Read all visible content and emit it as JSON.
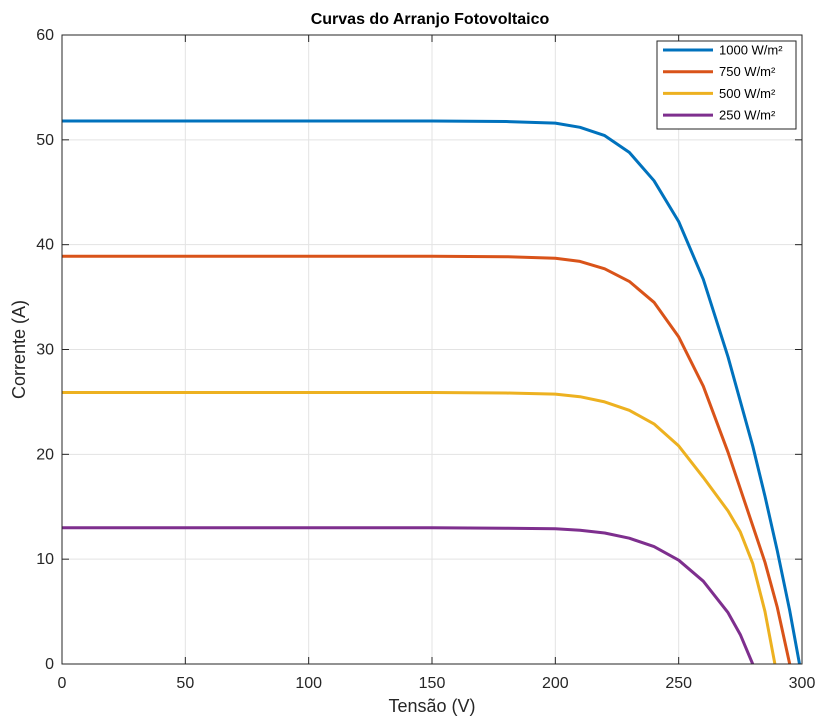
{
  "chart_data": {
    "type": "line",
    "title": "Curvas do Arranjo Fotovoltaico",
    "xlabel": "Tensão (V)",
    "ylabel": "Corrente (A)",
    "xlim": [
      0,
      300
    ],
    "ylim": [
      0,
      60
    ],
    "xticks": [
      0,
      50,
      100,
      150,
      200,
      250,
      300
    ],
    "yticks": [
      0,
      10,
      20,
      30,
      40,
      50,
      60
    ],
    "grid": true,
    "legend_position": "top-right",
    "series": [
      {
        "name": "1000 W/m²",
        "color": "#0072BD",
        "points": [
          [
            0,
            51.8
          ],
          [
            100,
            51.8
          ],
          [
            150,
            51.8
          ],
          [
            180,
            51.75
          ],
          [
            200,
            51.6
          ],
          [
            210,
            51.2
          ],
          [
            220,
            50.4
          ],
          [
            230,
            48.8
          ],
          [
            240,
            46.1
          ],
          [
            250,
            42.2
          ],
          [
            260,
            36.7
          ],
          [
            270,
            29.3
          ],
          [
            280,
            20.8
          ],
          [
            285,
            16.0
          ],
          [
            290,
            10.8
          ],
          [
            295,
            5.1
          ],
          [
            299,
            0
          ]
        ]
      },
      {
        "name": "750 W/m²",
        "color": "#D95319",
        "points": [
          [
            0,
            38.9
          ],
          [
            100,
            38.9
          ],
          [
            150,
            38.9
          ],
          [
            180,
            38.85
          ],
          [
            200,
            38.7
          ],
          [
            210,
            38.4
          ],
          [
            220,
            37.7
          ],
          [
            230,
            36.5
          ],
          [
            240,
            34.5
          ],
          [
            250,
            31.2
          ],
          [
            260,
            26.5
          ],
          [
            270,
            20.2
          ],
          [
            280,
            13.2
          ],
          [
            285,
            9.7
          ],
          [
            290,
            5.4
          ],
          [
            295,
            0
          ]
        ]
      },
      {
        "name": "500 W/m²",
        "color": "#EDB120",
        "points": [
          [
            0,
            25.9
          ],
          [
            100,
            25.9
          ],
          [
            150,
            25.9
          ],
          [
            180,
            25.85
          ],
          [
            200,
            25.75
          ],
          [
            210,
            25.5
          ],
          [
            220,
            25.0
          ],
          [
            230,
            24.2
          ],
          [
            240,
            22.9
          ],
          [
            250,
            20.8
          ],
          [
            260,
            17.8
          ],
          [
            270,
            14.6
          ],
          [
            275,
            12.6
          ],
          [
            280,
            9.6
          ],
          [
            285,
            5.0
          ],
          [
            289,
            0
          ]
        ]
      },
      {
        "name": "250 W/m²",
        "color": "#7E2F8E",
        "points": [
          [
            0,
            13.0
          ],
          [
            100,
            13.0
          ],
          [
            150,
            13.0
          ],
          [
            180,
            12.95
          ],
          [
            200,
            12.9
          ],
          [
            210,
            12.75
          ],
          [
            220,
            12.5
          ],
          [
            230,
            12.0
          ],
          [
            240,
            11.2
          ],
          [
            250,
            9.9
          ],
          [
            260,
            7.9
          ],
          [
            270,
            4.9
          ],
          [
            275,
            2.8
          ],
          [
            280,
            0
          ]
        ]
      }
    ]
  }
}
